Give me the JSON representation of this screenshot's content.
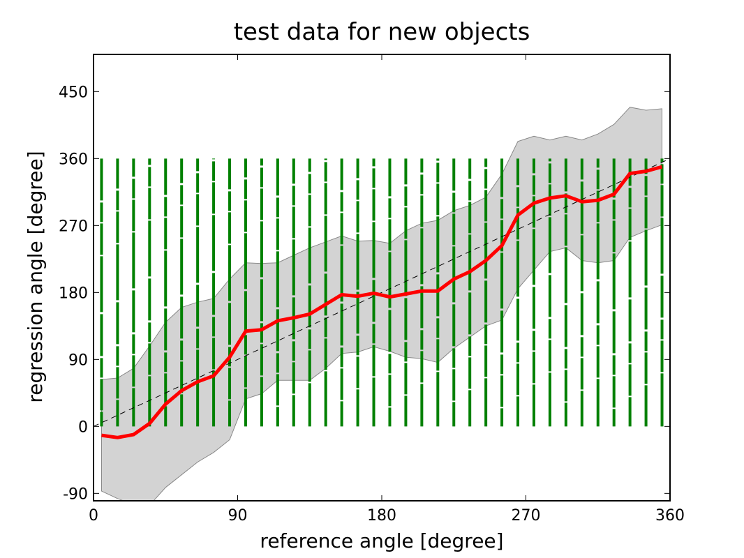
{
  "chart_data": {
    "type": "line",
    "title": "test data for new objects",
    "xlabel": "reference angle [degree]",
    "ylabel": "regression angle [degree]",
    "xlim": [
      0,
      360
    ],
    "ylim": [
      -100,
      500
    ],
    "xticks": [
      0,
      90,
      180,
      270,
      360
    ],
    "yticks": [
      -90,
      0,
      90,
      180,
      270,
      360,
      450
    ],
    "grid": false,
    "colors": {
      "mean": "#ff0000",
      "samples": "#008000",
      "band_fill": "#d3d3d3",
      "band_edge": "#888888",
      "identity": "#000000"
    },
    "x": [
      5,
      15,
      25,
      35,
      45,
      55,
      65,
      75,
      85,
      95,
      105,
      115,
      125,
      135,
      145,
      155,
      165,
      175,
      185,
      195,
      205,
      215,
      225,
      235,
      245,
      255,
      265,
      275,
      285,
      295,
      305,
      315,
      325,
      335,
      345,
      355
    ],
    "series": [
      {
        "role": "mean",
        "values": [
          -12,
          -15,
          -11,
          4,
          30,
          48,
          60,
          68,
          93,
          128,
          130,
          142,
          146,
          151,
          164,
          177,
          175,
          179,
          174,
          178,
          182,
          182,
          198,
          208,
          223,
          243,
          284,
          300,
          307,
          310,
          302,
          304,
          312,
          340,
          343,
          349
        ]
      },
      {
        "role": "band-upper",
        "values": [
          63,
          65,
          78,
          108,
          140,
          160,
          167,
          172,
          198,
          220,
          219,
          220,
          230,
          240,
          248,
          256,
          249,
          250,
          246,
          263,
          273,
          277,
          290,
          297,
          308,
          339,
          383,
          390,
          385,
          390,
          385,
          393,
          406,
          429,
          425,
          427
        ]
      },
      {
        "role": "band-lower",
        "values": [
          -87,
          -97,
          -105,
          -106,
          -82,
          -65,
          -48,
          -35,
          -18,
          37,
          44,
          62,
          62,
          62,
          78,
          98,
          100,
          107,
          101,
          93,
          91,
          86,
          105,
          120,
          135,
          143,
          185,
          210,
          235,
          240,
          223,
          220,
          223,
          254,
          263,
          271
        ]
      },
      {
        "role": "identity",
        "values": [
          0,
          360
        ],
        "x": [
          0,
          360
        ]
      }
    ],
    "samples": {
      "x": [
        5,
        15,
        25,
        35,
        45,
        55,
        65,
        75,
        85,
        95,
        105,
        115,
        125,
        135,
        145,
        155,
        165,
        175,
        185,
        195,
        205,
        215,
        225,
        235,
        245,
        255,
        265,
        275,
        285,
        295,
        305,
        315,
        325,
        335,
        345,
        355
      ],
      "y_min": 0,
      "y_max": 360
    }
  }
}
